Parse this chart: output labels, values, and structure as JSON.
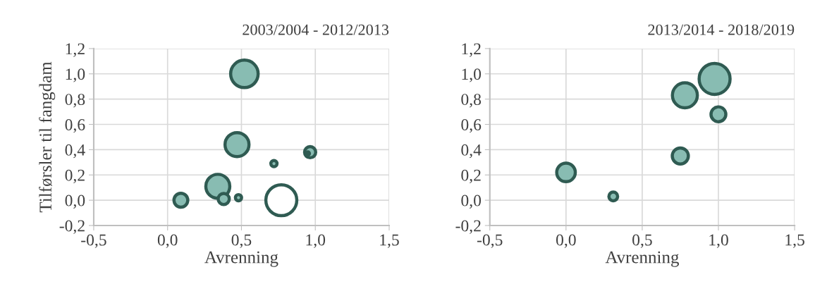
{
  "chart_data": [
    {
      "type": "bubble",
      "title": "2003/2004 - 2012/2013",
      "xlabel": "Avrenning",
      "ylabel": "Tilførsler til fangdam",
      "x": [
        0.52,
        0.47,
        0.965,
        0.95,
        0.72,
        0.34,
        0.38,
        0.48,
        0.09,
        0.77
      ],
      "values": [
        1.0,
        0.44,
        0.38,
        0.37,
        0.29,
        0.11,
        0.01,
        0.02,
        0.0,
        0.0
      ],
      "sizes": [
        0.79,
        0.6,
        0.13,
        0.01,
        0.04,
        0.6,
        0.13,
        0.04,
        0.2,
        1.0
      ],
      "colors": [
        "#88bcb2",
        "#88bcb2",
        "#88bcb2",
        "#88bcb2",
        "#88bcb2",
        "#88bcb2",
        "#88bcb2",
        "#88bcb2",
        "#88bcb2",
        "#ffffff"
      ],
      "xlim": [
        -0.5,
        1.5
      ],
      "ylim": [
        -0.2,
        1.2
      ],
      "xticks": [
        {
          "value": -0.5,
          "label": "-0,5"
        },
        {
          "value": 0.0,
          "label": "0,0"
        },
        {
          "value": 0.5,
          "label": "0,5"
        },
        {
          "value": 1.0,
          "label": "1,0"
        },
        {
          "value": 1.5,
          "label": "1,5"
        }
      ],
      "yticks": [
        {
          "value": -0.2,
          "label": "-0,2"
        },
        {
          "value": 0.0,
          "label": "0,0"
        },
        {
          "value": 0.2,
          "label": "0,2"
        },
        {
          "value": 0.4,
          "label": "0,4"
        },
        {
          "value": 0.6,
          "label": "0,6"
        },
        {
          "value": 0.8,
          "label": "0,8"
        },
        {
          "value": 1.0,
          "label": "1,0"
        },
        {
          "value": 1.2,
          "label": "1,2"
        }
      ],
      "grid": true
    },
    {
      "type": "bubble",
      "title": "2013/2014 - 2018/2019",
      "xlabel": "Avrenning",
      "x": [
        0.975,
        0.78,
        1.0,
        0.75,
        0.0,
        0.31
      ],
      "values": [
        0.96,
        0.83,
        0.68,
        0.35,
        0.22,
        0.03
      ],
      "sizes": [
        1.0,
        0.65,
        0.23,
        0.27,
        0.36,
        0.08
      ],
      "colors": [
        "#88bcb2",
        "#88bcb2",
        "#88bcb2",
        "#88bcb2",
        "#88bcb2",
        "#88bcb2"
      ],
      "xlim": [
        -0.5,
        1.5
      ],
      "ylim": [
        -0.2,
        1.2
      ],
      "xticks": [
        {
          "value": -0.5,
          "label": "-0,5"
        },
        {
          "value": 0.0,
          "label": "0,0"
        },
        {
          "value": 0.5,
          "label": "0,5"
        },
        {
          "value": 1.0,
          "label": "1,0"
        },
        {
          "value": 1.5,
          "label": "1,5"
        }
      ],
      "yticks": [
        {
          "value": -0.2,
          "label": "-0,2"
        },
        {
          "value": 0.0,
          "label": "0,0"
        },
        {
          "value": 0.2,
          "label": "0,2"
        },
        {
          "value": 0.4,
          "label": "0,4"
        },
        {
          "value": 0.6,
          "label": "0,6"
        },
        {
          "value": 0.8,
          "label": "0,8"
        },
        {
          "value": 1.0,
          "label": "1,0"
        },
        {
          "value": 1.2,
          "label": "1,2"
        }
      ],
      "grid": true
    }
  ]
}
